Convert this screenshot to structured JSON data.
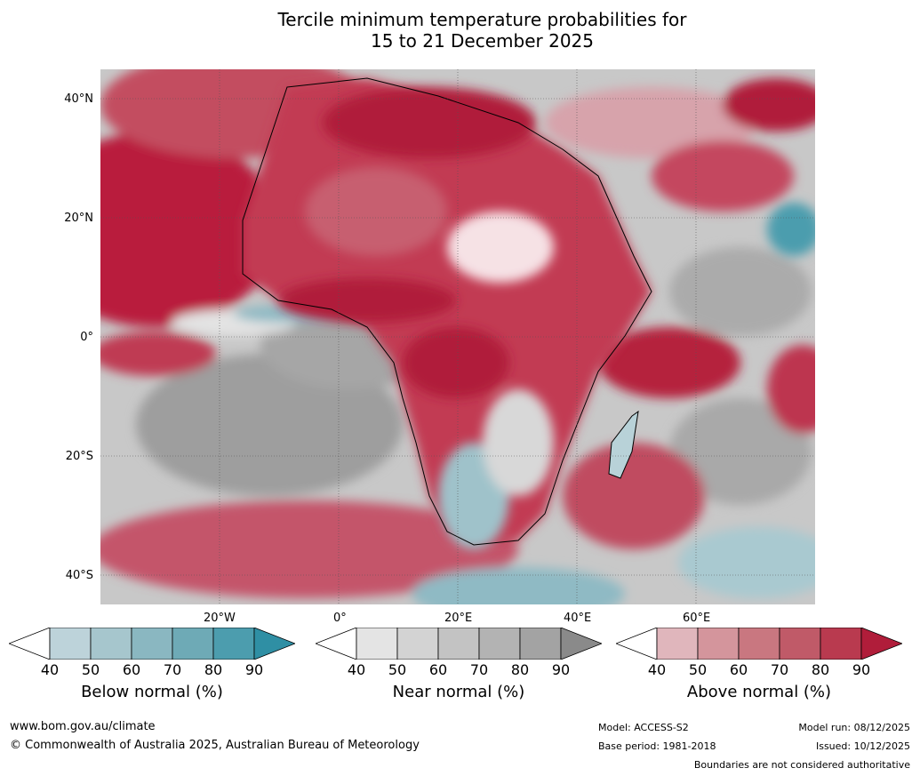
{
  "title": {
    "line1": "Tercile minimum temperature probabilities for",
    "line2": "15 to 21 December 2025"
  },
  "map": {
    "lat_labels": [
      "40°N",
      "20°N",
      "0°",
      "20°S",
      "40°S"
    ],
    "lon_labels": [
      "20°W",
      "0°",
      "20°E",
      "40°E",
      "60°E"
    ]
  },
  "legends": [
    {
      "name": "Below normal (%)",
      "ticks": [
        "40",
        "50",
        "60",
        "70",
        "80",
        "90"
      ],
      "colors": [
        "#ffffff",
        "#bdd3da",
        "#a6c6cd",
        "#8ab7c1",
        "#6eaab6",
        "#4c9dae",
        "#2f8fa4"
      ]
    },
    {
      "name": "Near normal (%)",
      "ticks": [
        "40",
        "50",
        "60",
        "70",
        "80",
        "90"
      ],
      "colors": [
        "#ffffff",
        "#e4e4e4",
        "#d3d3d3",
        "#c3c3c3",
        "#b3b3b3",
        "#a3a3a3",
        "#8a8a8a"
      ]
    },
    {
      "name": "Above normal (%)",
      "ticks": [
        "40",
        "50",
        "60",
        "70",
        "80",
        "90"
      ],
      "colors": [
        "#ffffff",
        "#e0b6bc",
        "#d4959c",
        "#c97780",
        "#c05a68",
        "#b93a4f",
        "#b01d3a"
      ]
    }
  ],
  "footer": {
    "url": "www.bom.gov.au/climate",
    "copyright": "© Commonwealth of Australia 2025, Australian Bureau of Meteorology",
    "model": "Model: ACCESS-S2",
    "base_period": "Base period: 1981-2018",
    "model_run": "Model run: 08/12/2025",
    "issued": "Issued: 10/12/2025",
    "disclaimer": "Boundaries are not considered authoritative"
  },
  "colors": {
    "ocean_grey": "#bdbdbd",
    "warm_red": "#b91f3c",
    "mid_red": "#c9566a",
    "light_red": "#dca2aa",
    "dark_grey": "#9b9b9b",
    "teal": "#8fbac4"
  }
}
